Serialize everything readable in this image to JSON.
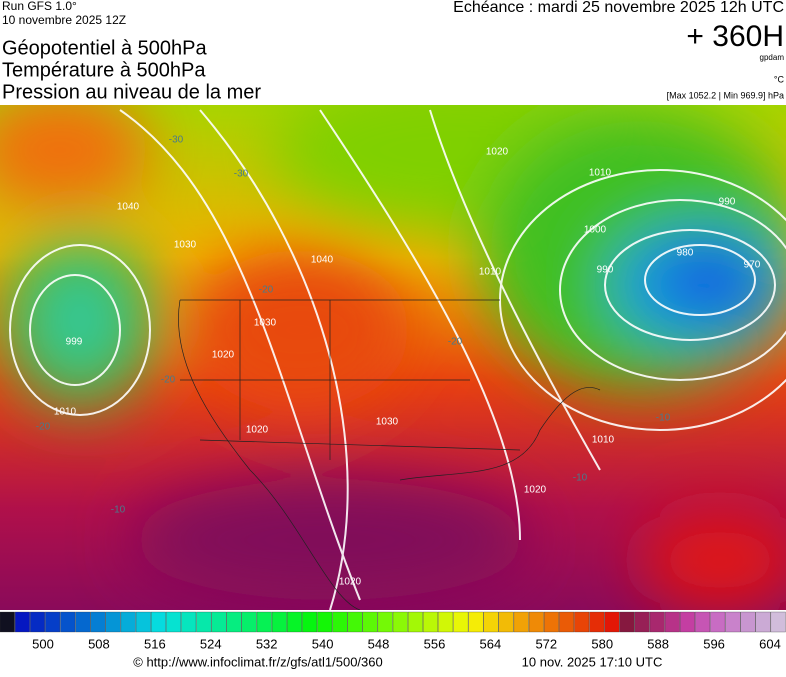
{
  "header": {
    "run": "Run GFS 1.0°",
    "date": "10 novembre 2025 12Z",
    "titles": [
      "Géopotentiel à 500hPa",
      "Température à 500hPa",
      "Pression au niveau de la mer"
    ],
    "echeance": "Echéance : mardi 25 novembre 2025 12h UTC",
    "horizon": "+ 360H",
    "unit_geo": "gpdam",
    "unit_temp": "°C",
    "minmax": "[Max 1052.2 | Min 969.9] hPa"
  },
  "map": {
    "pressure_labels": [
      "1040",
      "1030",
      "1040",
      "1030",
      "1020",
      "999",
      "1010",
      "1020",
      "1030",
      "1020",
      "1020",
      "1010",
      "1000",
      "990",
      "980",
      "970",
      "990",
      "1010",
      "1010",
      "1020"
    ],
    "temperature_labels": [
      "-30",
      "-30",
      "-20",
      "-20",
      "-20",
      "-20",
      "-10",
      "-10",
      "-10"
    ]
  },
  "scale": {
    "labels": [
      500,
      508,
      516,
      524,
      532,
      540,
      548,
      556,
      564,
      572,
      580,
      588,
      596,
      604
    ]
  },
  "footer": {
    "url": "© http://www.infoclimat.fr/z/gfs/atl1/500/360",
    "updated": "10 nov. 2025 17:10 UTC"
  }
}
